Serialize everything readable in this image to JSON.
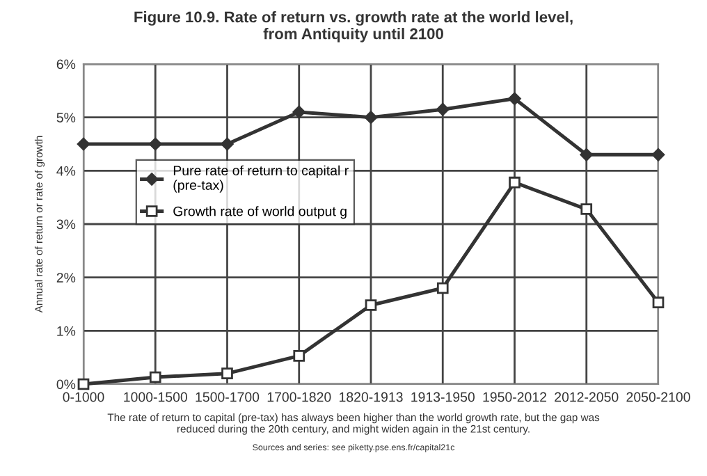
{
  "chart_data": {
    "type": "line",
    "title": "Figure 10.9. Rate of return vs. growth rate at the world level,\nfrom Antiquity until 2100",
    "ylabel": "Annual rate of return or rate of growth",
    "categories": [
      "0-1000",
      "1000-1500",
      "1500-1700",
      "1700-1820",
      "1820-1913",
      "1913-1950",
      "1950-2012",
      "2012-2050",
      "2050-2100"
    ],
    "series": [
      {
        "name": "Pure rate of return to capital r\n(pre-tax)",
        "color": "#333333",
        "marker": "diamond",
        "values": [
          4.5,
          4.5,
          4.5,
          5.1,
          5.0,
          5.15,
          5.35,
          4.3,
          4.3
        ]
      },
      {
        "name": "Growth rate of world output g",
        "color": "#333333",
        "marker": "square",
        "values": [
          0.0,
          0.13,
          0.2,
          0.53,
          1.48,
          1.8,
          3.78,
          3.28,
          1.53
        ]
      }
    ],
    "ylim": [
      0,
      6
    ],
    "yticks": [
      {
        "value": 0,
        "label": "0%"
      },
      {
        "value": 1,
        "label": "1%"
      },
      {
        "value": 2,
        "label": "2%"
      },
      {
        "value": 3,
        "label": "3%"
      },
      {
        "value": 4,
        "label": "4%"
      },
      {
        "value": 5,
        "label": "5%"
      },
      {
        "value": 6,
        "label": "6%"
      }
    ],
    "grid": true,
    "legend": "center left",
    "line_style": "solid",
    "annotations": [
      "The rate of return to capital (pre-tax) has always been higher than the world growth rate, but the gap was\nreduced during the 20th century, and might widen again in the 21st century.",
      "Sources and series: see piketty.pse.ens.fr/capital21c"
    ]
  }
}
